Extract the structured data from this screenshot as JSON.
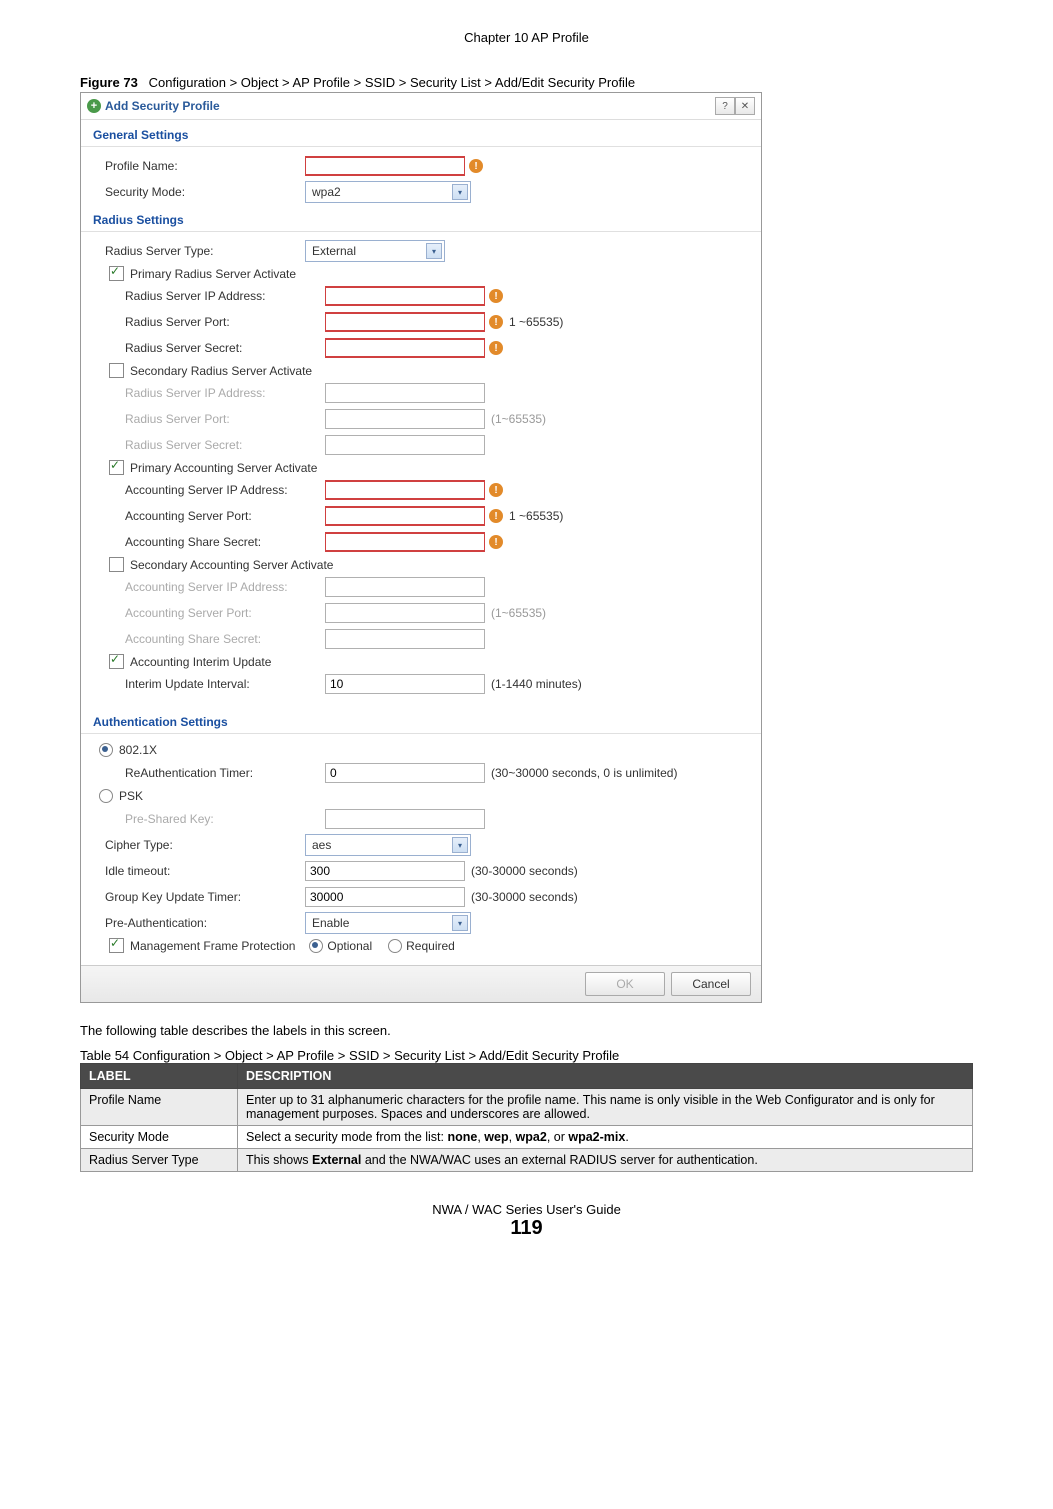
{
  "chapter_header": "Chapter 10 AP Profile",
  "figure_caption_bold": "Figure 73",
  "figure_caption": "Configuration > Object > AP Profile > SSID > Security List > Add/Edit Security Profile",
  "dialog": {
    "title": "Add Security Profile",
    "sections": {
      "general": "General Settings",
      "radius": "Radius Settings",
      "auth": "Authentication Settings"
    },
    "general": {
      "profile_name_label": "Profile Name:",
      "security_mode_label": "Security Mode:",
      "security_mode_value": "wpa2"
    },
    "radius": {
      "server_type_label": "Radius Server Type:",
      "server_type_value": "External",
      "primary_radius_cb": "Primary Radius Server Activate",
      "radius_ip_label": "Radius Server IP Address:",
      "radius_port_label": "Radius Server Port:",
      "radius_port_hint": "1 ~65535)",
      "radius_secret_label": "Radius Server Secret:",
      "secondary_radius_cb": "Secondary Radius Server Activate",
      "sec_radius_ip_label": "Radius Server IP Address:",
      "sec_radius_port_label": "Radius Server Port:",
      "sec_radius_port_hint": "(1~65535)",
      "sec_radius_secret_label": "Radius Server Secret:",
      "primary_acct_cb": "Primary Accounting Server Activate",
      "acct_ip_label": "Accounting Server IP Address:",
      "acct_port_label": "Accounting Server Port:",
      "acct_port_hint": "1 ~65535)",
      "acct_secret_label": "Accounting Share Secret:",
      "secondary_acct_cb": "Secondary Accounting Server Activate",
      "sec_acct_ip_label": "Accounting Server IP Address:",
      "sec_acct_port_label": "Accounting Server Port:",
      "sec_acct_port_hint": "(1~65535)",
      "sec_acct_secret_label": "Accounting Share Secret:",
      "interim_cb": "Accounting Interim Update",
      "interim_label": "Interim Update Interval:",
      "interim_value": "10",
      "interim_hint": "(1-1440 minutes)"
    },
    "auth": {
      "opt_8021x": "802.1X",
      "reauth_label": "ReAuthentication Timer:",
      "reauth_value": "0",
      "reauth_hint": "(30~30000 seconds, 0 is unlimited)",
      "opt_psk": "PSK",
      "psk_label": "Pre-Shared Key:",
      "cipher_label": "Cipher Type:",
      "cipher_value": "aes",
      "idle_label": "Idle timeout:",
      "idle_value": "300",
      "idle_hint": "(30-30000 seconds)",
      "gku_label": "Group Key Update Timer:",
      "gku_value": "30000",
      "gku_hint": "(30-30000 seconds)",
      "preauth_label": "Pre-Authentication:",
      "preauth_value": "Enable",
      "mfp_label": "Management Frame Protection",
      "mfp_optional": "Optional",
      "mfp_required": "Required"
    },
    "footer": {
      "ok": "OK",
      "cancel": "Cancel"
    }
  },
  "body_text": "The following table describes the labels in this screen.",
  "table_caption": "Table 54   Configuration > Object > AP Profile > SSID > Security List > Add/Edit Security Profile",
  "table": {
    "headers": [
      "LABEL",
      "DESCRIPTION"
    ],
    "rows": [
      [
        "Profile Name",
        "Enter up to 31 alphanumeric characters for the profile name. This name is only visible in the Web Configurator and is only for management purposes. Spaces and underscores are allowed."
      ],
      [
        "Security Mode",
        "Select a security mode from the list: <b>none</b>, <b>wep</b>, <b>wpa2</b>, or <b>wpa2-mix</b>."
      ],
      [
        "Radius Server Type",
        "This shows <b>External</b> and the NWA/WAC uses an external RADIUS server for authentication."
      ]
    ]
  },
  "footer": {
    "guide": "NWA / WAC Series User's Guide",
    "page": "119"
  }
}
